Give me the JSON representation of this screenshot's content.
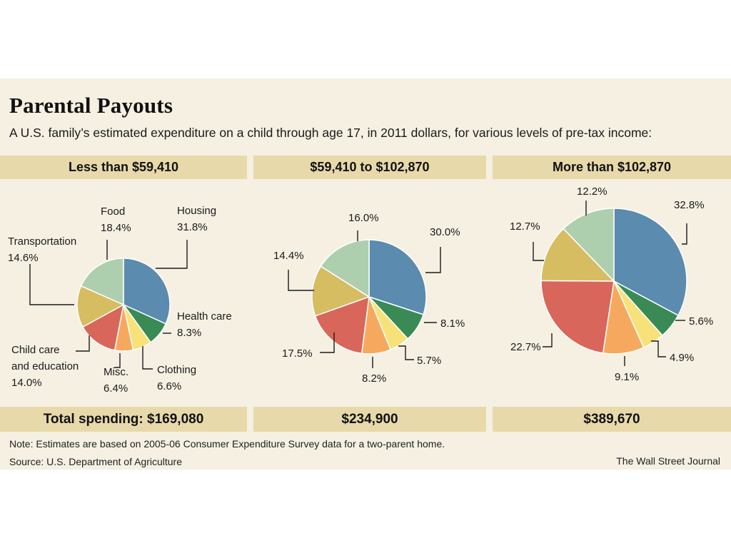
{
  "header": {
    "title": "Parental Payouts",
    "subtitle": "A U.S. family’s estimated expenditure on a child through age 17, in 2011 dollars, for various levels of pre-tax income:"
  },
  "chart_data": [
    {
      "type": "pie",
      "title": "Less than $59,410",
      "total": "Total spending: $169,080",
      "slices": [
        {
          "name": "Housing",
          "value": 31.8,
          "label": "31.8%",
          "color": "#5b8bae"
        },
        {
          "name": "Health care",
          "value": 8.3,
          "label": "8.3%",
          "color": "#3a8a55"
        },
        {
          "name": "Clothing",
          "value": 6.6,
          "label": "6.6%",
          "color": "#f7e27a"
        },
        {
          "name": "Misc.",
          "value": 6.4,
          "label": "6.4%",
          "color": "#f6a95e"
        },
        {
          "name": "Child care and education",
          "value": 14.0,
          "label": "14.0%",
          "color": "#d9665a"
        },
        {
          "name": "Transportation",
          "value": 14.6,
          "label": "14.6%",
          "color": "#d6bd62"
        },
        {
          "name": "Food",
          "value": 18.4,
          "label": "18.4%",
          "color": "#aecfae"
        }
      ]
    },
    {
      "type": "pie",
      "title": "$59,410 to $102,870",
      "total": "$234,900",
      "slices": [
        {
          "name": "Housing",
          "value": 30.0,
          "label": "30.0%",
          "color": "#5b8bae"
        },
        {
          "name": "Health care",
          "value": 8.1,
          "label": "8.1%",
          "color": "#3a8a55"
        },
        {
          "name": "Clothing",
          "value": 5.7,
          "label": "5.7%",
          "color": "#f7e27a"
        },
        {
          "name": "Misc.",
          "value": 8.2,
          "label": "8.2%",
          "color": "#f6a95e"
        },
        {
          "name": "Child care and education",
          "value": 17.5,
          "label": "17.5%",
          "color": "#d9665a"
        },
        {
          "name": "Transportation",
          "value": 14.4,
          "label": "14.4%",
          "color": "#d6bd62"
        },
        {
          "name": "Food",
          "value": 16.0,
          "label": "16.0%",
          "color": "#aecfae"
        }
      ]
    },
    {
      "type": "pie",
      "title": "More than $102,870",
      "total": "$389,670",
      "slices": [
        {
          "name": "Housing",
          "value": 32.8,
          "label": "32.8%",
          "color": "#5b8bae"
        },
        {
          "name": "Health care",
          "value": 5.6,
          "label": "5.6%",
          "color": "#3a8a55"
        },
        {
          "name": "Clothing",
          "value": 4.9,
          "label": "4.9%",
          "color": "#f7e27a"
        },
        {
          "name": "Misc.",
          "value": 9.1,
          "label": "9.1%",
          "color": "#f6a95e"
        },
        {
          "name": "Child care and education",
          "value": 22.7,
          "label": "22.7%",
          "color": "#d9665a"
        },
        {
          "name": "Transportation",
          "value": 12.7,
          "label": "12.7%",
          "color": "#d6bd62"
        },
        {
          "name": "Food",
          "value": 12.2,
          "label": "12.2%",
          "color": "#aecfae"
        }
      ]
    }
  ],
  "footer": {
    "note": "Note: Estimates are based on 2005-06 Consumer Expenditure Survey data for a two-parent home.",
    "source": "Source: U.S. Department of Agriculture",
    "credit": "The Wall Street Journal"
  }
}
